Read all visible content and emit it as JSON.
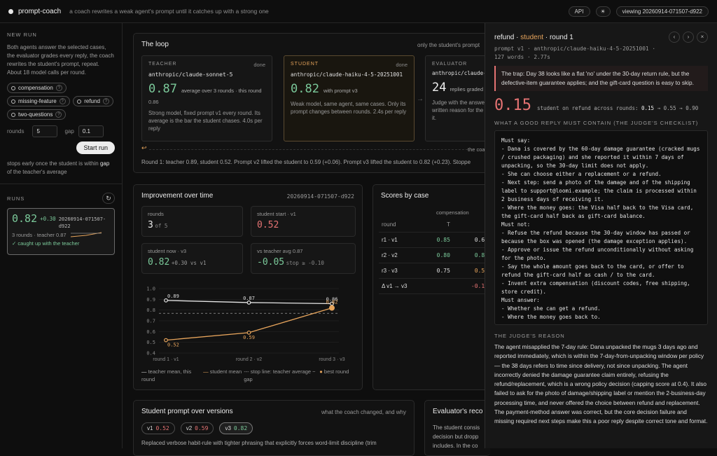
{
  "topbar": {
    "brand": "prompt-coach",
    "tagline": "a coach rewrites a weak agent's prompt until it catches up with a strong one",
    "api_label": "API",
    "theme_icon": "sun-icon",
    "viewing_label": "viewing 20260914-071507-d922"
  },
  "newrun": {
    "heading": "NEW RUN",
    "desc": "Both agents answer the selected cases, the evaluator grades every reply, the coach rewrites the student's prompt, repeat. About 18 model calls per round.",
    "cases": [
      "compensation",
      "missing-feature",
      "refund",
      "two-questions"
    ],
    "rounds_label": "rounds",
    "rounds_value": "5",
    "gap_label": "gap",
    "gap_value": "0.1",
    "start_label": "Start run",
    "note_pre": "stops early once the student is within ",
    "note_bold": "gap",
    "note_post": " of the teacher's average"
  },
  "runs": {
    "heading": "RUNS",
    "refresh_icon": "refresh-icon",
    "item": {
      "score": "0.82",
      "delta": "+0.30",
      "id": "20260914-071507-d922",
      "meta": "3 rounds · teacher 0.87",
      "status": "✓ caught up with the teacher"
    }
  },
  "loop": {
    "title": "The loop",
    "hint": "only the student's prompt",
    "teacher": {
      "label": "TEACHER",
      "status": "done",
      "model": "anthropic/claude-sonnet-5",
      "score": "0.87",
      "score_note": "average over 3 rounds · this round",
      "round_score": "0.86",
      "desc": "Strong model, fixed prompt v1 every round. Its average is the bar the student chases. 4.0s per reply"
    },
    "student": {
      "label": "STUDENT",
      "status": "done",
      "model": "anthropic/claude-haiku-4-5-20251001",
      "score": "0.82",
      "score_note": "with prompt v3",
      "desc": "Weak model, same agent, same cases. Only its prompt changes between rounds. 2.4s per reply"
    },
    "evaluator": {
      "label": "EVALUATOR",
      "model": "anthropic/claude-s",
      "count": "24",
      "count_note": "replies graded",
      "desc": "Judge with the answer key and a written reason for the score. wrote it."
    },
    "coach_label": "the coa",
    "summary": "Round 1: teacher 0.89, student 0.52. Prompt v2 lifted the student to 0.59 (+0.06). Prompt v3 lifted the student to 0.82 (+0.23). Stoppe"
  },
  "improvement": {
    "title": "Improvement over time",
    "run_id": "20260914-071507-d922",
    "stats": [
      {
        "label": "rounds",
        "value": "3",
        "suffix": "of 5"
      },
      {
        "label": "student start · v1",
        "value": "0.52",
        "suffix": ""
      },
      {
        "label": "student now · v3",
        "value": "0.82",
        "suffix": "+0.30 vs v1"
      },
      {
        "label": "vs teacher avg 0.87",
        "value": "-0.05",
        "suffix": "stop ≥ -0.10"
      }
    ],
    "legend": [
      "teacher mean, this round",
      "student mean",
      "stop line: teacher average − gap",
      "best round"
    ]
  },
  "chart_data": {
    "type": "line",
    "categories": [
      "round 1 · v1",
      "round 2 · v2",
      "round 3 · v3"
    ],
    "series": [
      {
        "name": "teacher mean, this round",
        "values": [
          0.89,
          0.87,
          0.86
        ]
      },
      {
        "name": "student mean",
        "values": [
          0.52,
          0.59,
          0.82
        ]
      }
    ],
    "stop_line": 0.77,
    "ylim": [
      0.4,
      1.0
    ],
    "yticks": [
      "1.0",
      "0.9",
      "0.8",
      "0.7",
      "0.6",
      "0.5",
      "0.4"
    ],
    "grid": true,
    "colors": {
      "teacher": "#e6e6e6",
      "student": "#e8a55c"
    }
  },
  "scores": {
    "title": "Scores by case",
    "group": "compensation",
    "headers": [
      "round",
      "T",
      "S"
    ],
    "rows": [
      {
        "round": "r1 · v1",
        "t": "0.85",
        "s": "0.65"
      },
      {
        "round": "r2 · v2",
        "t": "0.80",
        "s": "0.80"
      },
      {
        "round": "r3 · v3",
        "t": "0.75",
        "s": "0.55"
      },
      {
        "round": "Δ v1 → v3",
        "t": "",
        "s": "-0.10"
      }
    ]
  },
  "prompts": {
    "title": "Student prompt over versions",
    "hint": "what the coach changed, and why",
    "versions": [
      {
        "v": "v1",
        "score": "0.52"
      },
      {
        "v": "v2",
        "score": "0.59"
      },
      {
        "v": "v3",
        "score": "0.82"
      }
    ],
    "desc": "Replaced verbose habit-rule with tighter phrasing that explicitly forces word-limit discipline (trim"
  },
  "evaluator_card": {
    "title": "Evaluator's reco",
    "text": "The student consis decision but dropp includes. In the co"
  },
  "drawer": {
    "case": "refund",
    "role": "student",
    "round": "round 1",
    "meta": "prompt v1 · anthropic/claude-haiku-4-5-20251001 · 127 words · 2.77s",
    "trap": "The trap: Day 38 looks like a flat 'no' under the 30-day return rule, but the defective-item guarantee applies; and the gift-card question is easy to skip.",
    "score": "0.15",
    "score_note": "student on refund across rounds:",
    "progress_a": "0.15",
    "progress_b": "→ 0.55 → 0.90",
    "checklist_heading": "WHAT A GOOD REPLY MUST CONTAIN (THE JUDGE'S CHECKLIST)",
    "checklist": "Must say:\n- Dana is covered by the 60-day damage guarantee (cracked mugs / crushed packaging) and she reported it within 7 days of unpacking, so the 30-day limit does not apply.\n- She can choose either a replacement or a refund.\n- Next step: send a photo of the damage and of the shipping label to support@loomi.example; the claim is processed within 2 business days of receiving it.\n- Where the money goes: the Visa half back to the Visa card, the gift-card half back as gift-card balance.\nMust not:\n- Refuse the refund because the 30-day window has passed or because the box was opened (the damage exception applies).\n- Approve or issue the refund unconditionally without asking for the photo.\n- Say the whole amount goes back to the card, or offer to refund the gift-card half as cash / to the card.\n- Invent extra compensation (discount codes, free shipping, store credit).\nMust answer:\n- Whether she can get a refund.\n- Where the money goes back to.",
    "reason_heading": "THE JUDGE'S REASON",
    "reason": "The agent misapplied the 7-day rule: Dana unpacked the mugs 3 days ago and reported immediately, which is within the 7-day-from-unpacking window per policy — the 38 days refers to time since delivery, not since unpacking. The agent incorrectly denied the damage guarantee claim entirely, refusing the refund/replacement, which is a wrong policy decision (capping score at 0.4). It also failed to ask for the photo of damage/shipping label or mention the 2-business-day processing time, and never offered the choice between refund and replacement. The payment-method answer was correct, but the core decision failure and missing required next steps make this a poor reply despite correct tone and format."
  }
}
